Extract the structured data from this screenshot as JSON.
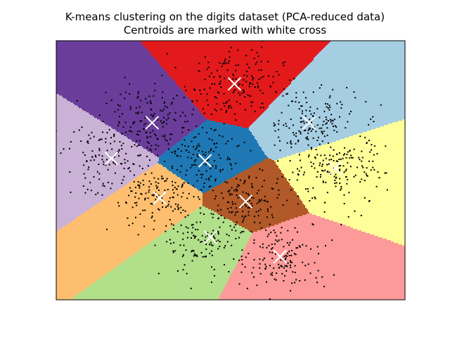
{
  "chart_data": {
    "type": "scatter",
    "title_lines": [
      "K-means clustering on the digits dataset (PCA-reduced data)",
      "Centroids are marked with white cross"
    ],
    "xlabel": "",
    "ylabel": "",
    "xticks": [],
    "yticks": [],
    "xlim": [
      -6,
      6
    ],
    "ylim": [
      -6,
      6
    ],
    "n_clusters": 10,
    "region_colors": [
      "#a6cee3",
      "#1f78b4",
      "#b2df8a",
      "#fb9a99",
      "#e31a1c",
      "#fdbf6f",
      "#ff7f00",
      "#cab2d6",
      "#6a3d9a",
      "#ffff99",
      "#b15928"
    ],
    "point_color": "#000000",
    "centroid_marker_color": "#ffffff",
    "centroids": [
      {
        "x": -0.88,
        "y": 0.44,
        "region_color": "#1f78b4",
        "count": 170
      },
      {
        "x": 0.13,
        "y": 4.0,
        "region_color": "#e31a1c",
        "count": 180
      },
      {
        "x": 2.7,
        "y": 2.2,
        "region_color": "#a6cee3",
        "count": 180
      },
      {
        "x": 3.6,
        "y": 0.1,
        "region_color": "#ffff99",
        "count": 200
      },
      {
        "x": 0.52,
        "y": -1.45,
        "region_color": "#b15928",
        "count": 170
      },
      {
        "x": 1.7,
        "y": -4.0,
        "region_color": "#fb9a99",
        "count": 160
      },
      {
        "x": -0.69,
        "y": -3.1,
        "region_color": "#b2df8a",
        "count": 180
      },
      {
        "x": -2.44,
        "y": -1.28,
        "region_color": "#fdbf6f",
        "count": 170
      },
      {
        "x": -4.1,
        "y": 0.55,
        "region_color": "#cab2d6",
        "count": 150
      },
      {
        "x": -2.7,
        "y": 2.2,
        "region_color": "#6a3d9a",
        "count": 180
      }
    ],
    "legend": "none",
    "grid": false
  }
}
